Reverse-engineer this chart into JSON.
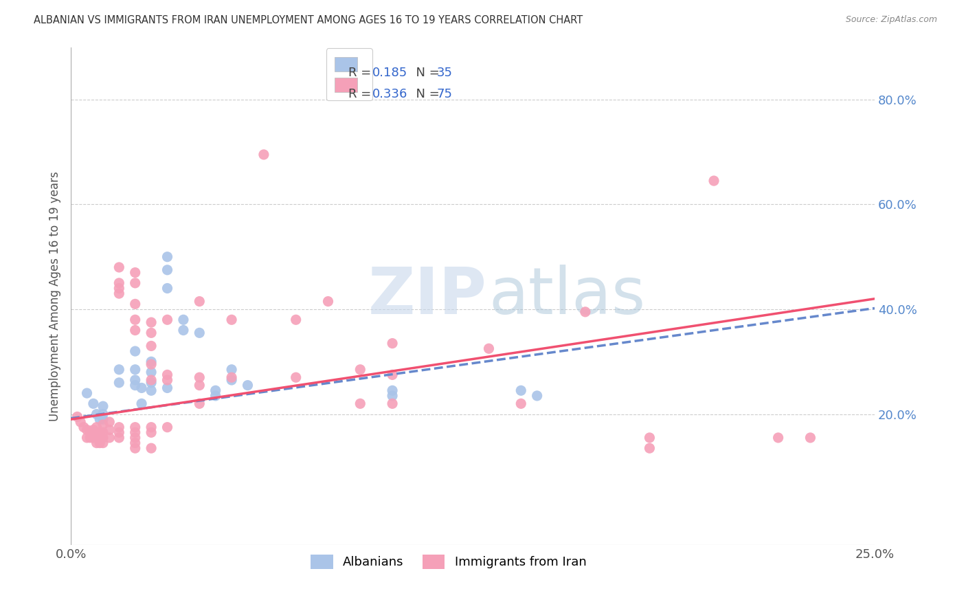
{
  "title": "ALBANIAN VS IMMIGRANTS FROM IRAN UNEMPLOYMENT AMONG AGES 16 TO 19 YEARS CORRELATION CHART",
  "source": "Source: ZipAtlas.com",
  "ylabel": "Unemployment Among Ages 16 to 19 years",
  "xlim": [
    0.0,
    0.25
  ],
  "ylim": [
    -0.05,
    0.9
  ],
  "xticks": [
    0.0,
    0.05,
    0.1,
    0.15,
    0.2,
    0.25
  ],
  "xtick_labels": [
    "0.0%",
    "",
    "",
    "",
    "",
    "25.0%"
  ],
  "ytick_right_vals": [
    0.2,
    0.4,
    0.6,
    0.8
  ],
  "ytick_right_labels": [
    "20.0%",
    "40.0%",
    "60.0%",
    "80.0%"
  ],
  "albanian_color": "#aac4e8",
  "iran_color": "#f5a0b8",
  "albanian_line_color": "#6688cc",
  "iran_line_color": "#f05070",
  "R_albanian": 0.185,
  "N_albanian": 35,
  "R_iran": 0.336,
  "N_iran": 75,
  "watermark_zip": "ZIP",
  "watermark_atlas": "atlas",
  "background_color": "#ffffff",
  "grid_color": "#cccccc",
  "albanian_scatter": [
    [
      0.005,
      0.24
    ],
    [
      0.007,
      0.22
    ],
    [
      0.008,
      0.2
    ],
    [
      0.009,
      0.19
    ],
    [
      0.01,
      0.215
    ],
    [
      0.01,
      0.2
    ],
    [
      0.01,
      0.19
    ],
    [
      0.015,
      0.285
    ],
    [
      0.015,
      0.26
    ],
    [
      0.02,
      0.32
    ],
    [
      0.02,
      0.285
    ],
    [
      0.02,
      0.265
    ],
    [
      0.02,
      0.255
    ],
    [
      0.022,
      0.25
    ],
    [
      0.022,
      0.22
    ],
    [
      0.025,
      0.3
    ],
    [
      0.025,
      0.28
    ],
    [
      0.025,
      0.26
    ],
    [
      0.025,
      0.245
    ],
    [
      0.03,
      0.5
    ],
    [
      0.03,
      0.475
    ],
    [
      0.03,
      0.44
    ],
    [
      0.03,
      0.25
    ],
    [
      0.035,
      0.38
    ],
    [
      0.035,
      0.36
    ],
    [
      0.04,
      0.355
    ],
    [
      0.045,
      0.245
    ],
    [
      0.045,
      0.235
    ],
    [
      0.05,
      0.285
    ],
    [
      0.05,
      0.265
    ],
    [
      0.055,
      0.255
    ],
    [
      0.1,
      0.245
    ],
    [
      0.1,
      0.235
    ],
    [
      0.14,
      0.245
    ],
    [
      0.145,
      0.235
    ]
  ],
  "iran_scatter": [
    [
      0.002,
      0.195
    ],
    [
      0.003,
      0.185
    ],
    [
      0.004,
      0.175
    ],
    [
      0.005,
      0.17
    ],
    [
      0.005,
      0.155
    ],
    [
      0.006,
      0.165
    ],
    [
      0.006,
      0.155
    ],
    [
      0.007,
      0.17
    ],
    [
      0.007,
      0.155
    ],
    [
      0.008,
      0.175
    ],
    [
      0.008,
      0.165
    ],
    [
      0.008,
      0.155
    ],
    [
      0.008,
      0.145
    ],
    [
      0.009,
      0.165
    ],
    [
      0.009,
      0.155
    ],
    [
      0.009,
      0.145
    ],
    [
      0.01,
      0.18
    ],
    [
      0.01,
      0.165
    ],
    [
      0.01,
      0.155
    ],
    [
      0.01,
      0.145
    ],
    [
      0.012,
      0.185
    ],
    [
      0.012,
      0.17
    ],
    [
      0.012,
      0.155
    ],
    [
      0.015,
      0.48
    ],
    [
      0.015,
      0.45
    ],
    [
      0.015,
      0.44
    ],
    [
      0.015,
      0.43
    ],
    [
      0.015,
      0.175
    ],
    [
      0.015,
      0.165
    ],
    [
      0.015,
      0.155
    ],
    [
      0.02,
      0.47
    ],
    [
      0.02,
      0.45
    ],
    [
      0.02,
      0.41
    ],
    [
      0.02,
      0.38
    ],
    [
      0.02,
      0.36
    ],
    [
      0.02,
      0.175
    ],
    [
      0.02,
      0.165
    ],
    [
      0.02,
      0.155
    ],
    [
      0.02,
      0.145
    ],
    [
      0.02,
      0.135
    ],
    [
      0.025,
      0.375
    ],
    [
      0.025,
      0.355
    ],
    [
      0.025,
      0.33
    ],
    [
      0.025,
      0.295
    ],
    [
      0.025,
      0.265
    ],
    [
      0.025,
      0.175
    ],
    [
      0.025,
      0.165
    ],
    [
      0.025,
      0.135
    ],
    [
      0.03,
      0.38
    ],
    [
      0.03,
      0.275
    ],
    [
      0.03,
      0.265
    ],
    [
      0.03,
      0.175
    ],
    [
      0.04,
      0.415
    ],
    [
      0.04,
      0.27
    ],
    [
      0.04,
      0.255
    ],
    [
      0.04,
      0.22
    ],
    [
      0.05,
      0.38
    ],
    [
      0.05,
      0.27
    ],
    [
      0.06,
      0.695
    ],
    [
      0.07,
      0.38
    ],
    [
      0.07,
      0.27
    ],
    [
      0.08,
      0.415
    ],
    [
      0.09,
      0.285
    ],
    [
      0.09,
      0.22
    ],
    [
      0.1,
      0.335
    ],
    [
      0.1,
      0.275
    ],
    [
      0.1,
      0.22
    ],
    [
      0.13,
      0.325
    ],
    [
      0.14,
      0.22
    ],
    [
      0.16,
      0.395
    ],
    [
      0.18,
      0.155
    ],
    [
      0.18,
      0.135
    ],
    [
      0.2,
      0.645
    ],
    [
      0.22,
      0.155
    ],
    [
      0.23,
      0.155
    ]
  ]
}
